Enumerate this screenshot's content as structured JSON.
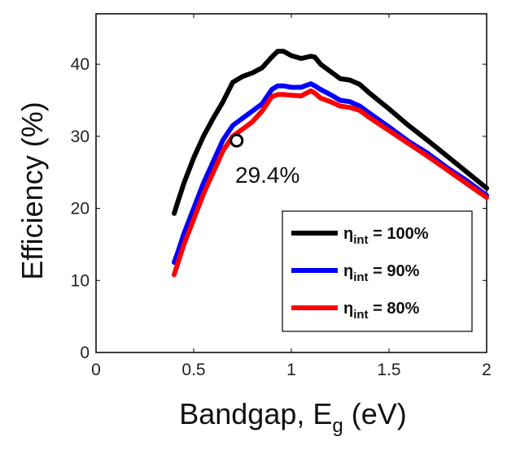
{
  "chart_data": {
    "type": "line",
    "xlabel": {
      "main": "Bandgap, E",
      "sub": "g",
      "unit": " (eV)"
    },
    "ylabel": "Efficiency (%)",
    "xlim": [
      0,
      2
    ],
    "ylim": [
      0,
      47
    ],
    "xticks": [
      0,
      0.5,
      1,
      1.5,
      2
    ],
    "xtick_labels": [
      "0",
      "0.5",
      "1",
      "1.5",
      "2"
    ],
    "yticks": [
      0,
      10,
      20,
      30,
      40
    ],
    "ytick_labels": [
      "0",
      "10",
      "20",
      "30",
      "40"
    ],
    "grid": false,
    "legend_position": "bottom-right",
    "series": [
      {
        "name": "η_int = 100%",
        "label_main": "η",
        "label_sub": "int",
        "label_rest": " = 100%",
        "color": "#000000",
        "x": [
          0.4,
          0.42,
          0.45,
          0.5,
          0.55,
          0.6,
          0.65,
          0.7,
          0.75,
          0.8,
          0.85,
          0.9,
          0.93,
          0.96,
          1.0,
          1.05,
          1.1,
          1.12,
          1.15,
          1.2,
          1.25,
          1.3,
          1.35,
          1.4,
          1.5,
          1.6,
          1.7,
          1.8,
          1.9,
          2.0
        ],
        "y": [
          19.3,
          21.0,
          23.5,
          27.0,
          30.0,
          32.5,
          34.8,
          37.5,
          38.3,
          38.8,
          39.5,
          41.0,
          41.8,
          41.8,
          41.2,
          40.8,
          41.1,
          41.0,
          40.0,
          39.0,
          38.0,
          37.8,
          37.2,
          36.0,
          33.8,
          31.5,
          29.4,
          27.2,
          25.0,
          22.8
        ]
      },
      {
        "name": "η_int = 90%",
        "label_main": "η",
        "label_sub": "int",
        "label_rest": " = 90%",
        "color": "#0000ff",
        "x": [
          0.4,
          0.42,
          0.45,
          0.5,
          0.55,
          0.6,
          0.65,
          0.7,
          0.75,
          0.8,
          0.85,
          0.9,
          0.93,
          0.96,
          1.0,
          1.05,
          1.1,
          1.12,
          1.15,
          1.2,
          1.25,
          1.3,
          1.35,
          1.4,
          1.5,
          1.6,
          1.7,
          1.8,
          1.9,
          2.0
        ],
        "y": [
          12.5,
          14.0,
          16.5,
          20.0,
          23.5,
          26.5,
          29.5,
          31.5,
          32.5,
          33.5,
          34.5,
          36.5,
          37.0,
          37.0,
          36.8,
          36.8,
          37.3,
          37.0,
          36.5,
          35.8,
          35.0,
          34.8,
          34.2,
          33.2,
          31.3,
          29.3,
          27.6,
          25.6,
          23.8,
          21.8
        ]
      },
      {
        "name": "η_int = 80%",
        "label_main": "η",
        "label_sub": "int",
        "label_rest": " = 80%",
        "color": "#ff0000",
        "x": [
          0.4,
          0.42,
          0.45,
          0.5,
          0.55,
          0.6,
          0.65,
          0.7,
          0.75,
          0.8,
          0.85,
          0.9,
          0.93,
          0.96,
          1.0,
          1.05,
          1.1,
          1.12,
          1.15,
          1.2,
          1.25,
          1.3,
          1.35,
          1.4,
          1.5,
          1.6,
          1.7,
          1.8,
          1.9,
          2.0
        ],
        "y": [
          10.8,
          12.5,
          15.0,
          18.5,
          22.0,
          25.0,
          28.0,
          30.0,
          31.0,
          32.0,
          33.5,
          35.5,
          35.8,
          35.8,
          35.7,
          35.6,
          36.3,
          36.0,
          35.3,
          34.8,
          34.2,
          34.0,
          33.6,
          32.6,
          30.8,
          29.0,
          27.2,
          25.3,
          23.4,
          21.5
        ]
      }
    ],
    "annotation": {
      "text": "29.4%",
      "x": 0.72,
      "y": 29.4,
      "marker": "open-circle"
    }
  }
}
